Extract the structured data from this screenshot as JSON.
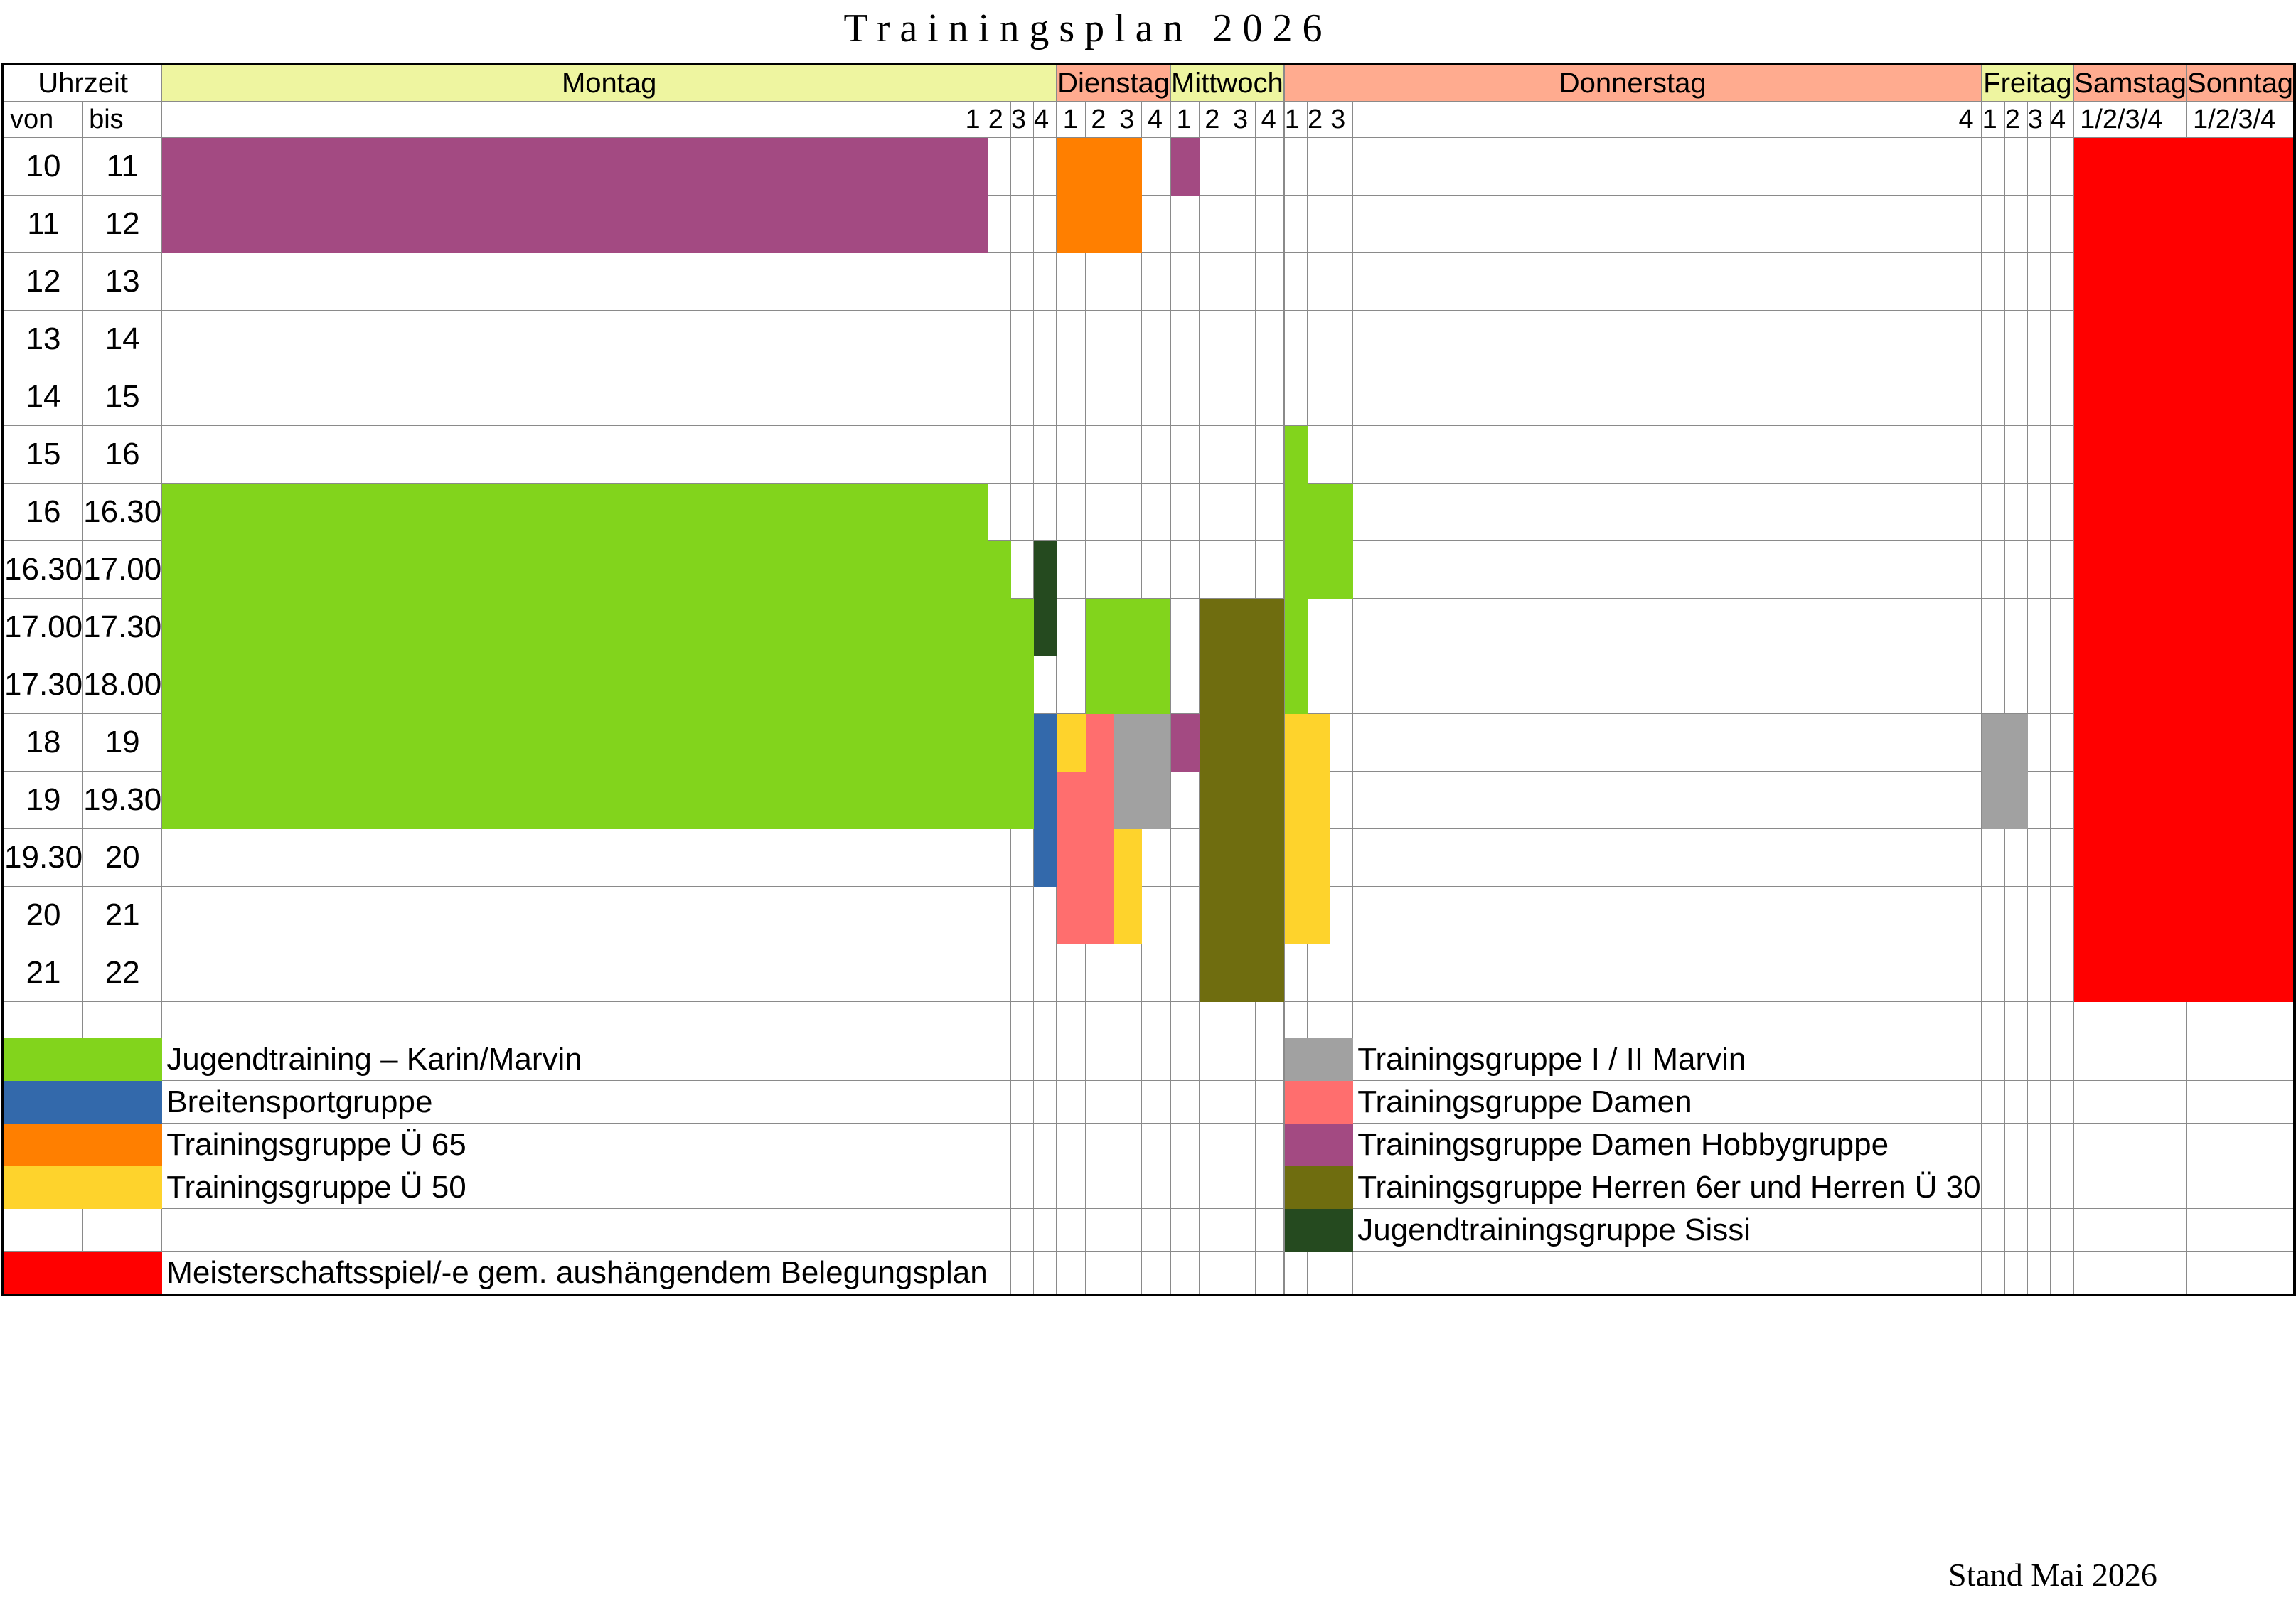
{
  "title": "Trainingsplan 2026",
  "footer": "Stand Mai 2026",
  "colors": {
    "jugend": "#82d41c",
    "breiten": "#3369ab",
    "ue65": "#ff7f00",
    "ue50": "#fed32c",
    "tg12": "#a1a1a1",
    "damen": "#ff6e6e",
    "hobby": "#a34a82",
    "herren": "#6f6d0f",
    "sissi": "#254a1f",
    "meister": "#ff0000",
    "yellow_header": "#eef5a0",
    "salmon_header": "#ffab8f"
  },
  "header": {
    "uhrzeit": "Uhrzeit",
    "von": "von",
    "bis": "bis",
    "days": [
      {
        "label": "Montag",
        "color": "yellow_header"
      },
      {
        "label": "Dienstag",
        "color": "salmon_header"
      },
      {
        "label": "Mittwoch",
        "color": "yellow_header"
      },
      {
        "label": "Donnerstag",
        "color": "salmon_header"
      },
      {
        "label": "Freitag",
        "color": "yellow_header"
      }
    ],
    "courts": [
      "1",
      "2",
      "3",
      "4"
    ],
    "weekend": [
      {
        "label": "Samstag",
        "courts": "1/2/3/4"
      },
      {
        "label": "Sonntag",
        "courts": "1/2/3/4"
      }
    ]
  },
  "rows": [
    {
      "von": "10",
      "bis": "11",
      "mon": [
        "hobby",
        "",
        "",
        ""
      ],
      "die": [
        "ue65",
        "ue65",
        "ue65",
        ""
      ],
      "mit": [
        "hobby",
        "",
        "",
        ""
      ],
      "don": [
        "",
        "",
        "",
        ""
      ],
      "fre": [
        "",
        "",
        "",
        ""
      ],
      "we": "meister"
    },
    {
      "von": "11",
      "bis": "12",
      "mon": [
        "hobby",
        "",
        "",
        ""
      ],
      "die": [
        "ue65",
        "ue65",
        "ue65",
        ""
      ],
      "mit": [
        "",
        "",
        "",
        ""
      ],
      "don": [
        "",
        "",
        "",
        ""
      ],
      "fre": [
        "",
        "",
        "",
        ""
      ],
      "we": "meister"
    },
    {
      "von": "12",
      "bis": "13",
      "mon": [
        "",
        "",
        "",
        ""
      ],
      "die": [
        "",
        "",
        "",
        ""
      ],
      "mit": [
        "",
        "",
        "",
        ""
      ],
      "don": [
        "",
        "",
        "",
        ""
      ],
      "fre": [
        "",
        "",
        "",
        ""
      ],
      "we": "meister"
    },
    {
      "von": "13",
      "bis": "14",
      "mon": [
        "",
        "",
        "",
        ""
      ],
      "die": [
        "",
        "",
        "",
        ""
      ],
      "mit": [
        "",
        "",
        "",
        ""
      ],
      "don": [
        "",
        "",
        "",
        ""
      ],
      "fre": [
        "",
        "",
        "",
        ""
      ],
      "we": "meister"
    },
    {
      "von": "14",
      "bis": "15",
      "mon": [
        "",
        "",
        "",
        ""
      ],
      "die": [
        "",
        "",
        "",
        ""
      ],
      "mit": [
        "",
        "",
        "",
        ""
      ],
      "don": [
        "",
        "",
        "",
        ""
      ],
      "fre": [
        "",
        "",
        "",
        ""
      ],
      "we": "meister"
    },
    {
      "von": "15",
      "bis": "16",
      "mon": [
        "",
        "",
        "",
        ""
      ],
      "die": [
        "",
        "",
        "",
        ""
      ],
      "mit": [
        "",
        "",
        "",
        ""
      ],
      "don": [
        "jugend",
        "",
        "",
        ""
      ],
      "fre": [
        "",
        "",
        "",
        ""
      ],
      "we": "meister"
    },
    {
      "von": "16",
      "bis": "16.30",
      "mon": [
        "jugend",
        "",
        "",
        ""
      ],
      "die": [
        "",
        "",
        "",
        ""
      ],
      "mit": [
        "",
        "",
        "",
        ""
      ],
      "don": [
        "jugend",
        "jugend",
        "jugend",
        ""
      ],
      "fre": [
        "",
        "",
        "",
        ""
      ],
      "we": "meister"
    },
    {
      "von": "16.30",
      "bis": "17.00",
      "mon": [
        "jugend",
        "jugend",
        "",
        "sissi"
      ],
      "die": [
        "",
        "",
        "",
        ""
      ],
      "mit": [
        "",
        "",
        "",
        ""
      ],
      "don": [
        "jugend",
        "jugend",
        "jugend",
        ""
      ],
      "fre": [
        "",
        "",
        "",
        ""
      ],
      "we": "meister"
    },
    {
      "von": "17.00",
      "bis": "17.30",
      "mon": [
        "jugend",
        "jugend",
        "jugend",
        "sissi"
      ],
      "die": [
        "",
        "jugend",
        "jugend",
        "jugend"
      ],
      "mit": [
        "",
        "herren",
        "herren",
        "herren"
      ],
      "don": [
        "jugend",
        "",
        "",
        ""
      ],
      "fre": [
        "",
        "",
        "",
        ""
      ],
      "we": "meister"
    },
    {
      "von": "17.30",
      "bis": "18.00",
      "mon": [
        "jugend",
        "jugend",
        "jugend",
        ""
      ],
      "die": [
        "",
        "jugend",
        "jugend",
        "jugend"
      ],
      "mit": [
        "",
        "herren",
        "herren",
        "herren"
      ],
      "don": [
        "jugend",
        "",
        "",
        ""
      ],
      "fre": [
        "",
        "",
        "",
        ""
      ],
      "we": "meister"
    },
    {
      "von": "18",
      "bis": "19",
      "mon": [
        "jugend",
        "jugend",
        "jugend",
        "breiten"
      ],
      "die": [
        "ue50",
        "damen",
        "tg12",
        "tg12"
      ],
      "mit": [
        "hobby",
        "herren",
        "herren",
        "herren"
      ],
      "don": [
        "ue50",
        "ue50",
        "",
        ""
      ],
      "fre": [
        "tg12",
        "tg12",
        "",
        ""
      ],
      "we": "meister"
    },
    {
      "von": "19",
      "bis": "19.30",
      "mon": [
        "jugend",
        "jugend",
        "jugend",
        "breiten"
      ],
      "die": [
        "damen",
        "damen",
        "tg12",
        "tg12"
      ],
      "mit": [
        "",
        "herren",
        "herren",
        "herren"
      ],
      "don": [
        "ue50",
        "ue50",
        "",
        ""
      ],
      "fre": [
        "tg12",
        "tg12",
        "",
        ""
      ],
      "we": "meister"
    },
    {
      "von": "19.30",
      "bis": "20",
      "mon": [
        "",
        "",
        "",
        "breiten"
      ],
      "die": [
        "damen",
        "damen",
        "ue50",
        ""
      ],
      "mit": [
        "",
        "herren",
        "herren",
        "herren"
      ],
      "don": [
        "ue50",
        "ue50",
        "",
        ""
      ],
      "fre": [
        "",
        "",
        "",
        ""
      ],
      "we": "meister"
    },
    {
      "von": "20",
      "bis": "21",
      "mon": [
        "",
        "",
        "",
        ""
      ],
      "die": [
        "damen",
        "damen",
        "ue50",
        ""
      ],
      "mit": [
        "",
        "herren",
        "herren",
        "herren"
      ],
      "don": [
        "ue50",
        "ue50",
        "",
        ""
      ],
      "fre": [
        "",
        "",
        "",
        ""
      ],
      "we": "meister"
    },
    {
      "von": "21",
      "bis": "22",
      "mon": [
        "",
        "",
        "",
        ""
      ],
      "die": [
        "",
        "",
        "",
        ""
      ],
      "mit": [
        "",
        "herren",
        "herren",
        "herren"
      ],
      "don": [
        "",
        "",
        "",
        ""
      ],
      "fre": [
        "",
        "",
        "",
        ""
      ],
      "we": "meister"
    }
  ],
  "legend": [
    {
      "left": {
        "color": "jugend",
        "label": "Jugendtraining – Karin/Marvin"
      },
      "right": {
        "color": "tg12",
        "label": "Trainingsgruppe I / II Marvin"
      }
    },
    {
      "left": {
        "color": "breiten",
        "label": "Breitensportgruppe"
      },
      "right": {
        "color": "damen",
        "label": "Trainingsgruppe Damen"
      }
    },
    {
      "left": {
        "color": "ue65",
        "label": "Trainingsgruppe Ü 65"
      },
      "right": {
        "color": "hobby",
        "label": "Trainingsgruppe Damen Hobbygruppe"
      }
    },
    {
      "left": {
        "color": "ue50",
        "label": "Trainingsgruppe Ü 50"
      },
      "right": {
        "color": "herren",
        "label": "Trainingsgruppe Herren 6er und Herren Ü 30"
      }
    },
    {
      "left": null,
      "right": {
        "color": "sissi",
        "label": "Jugendtrainingsgruppe Sissi"
      }
    },
    {
      "left": {
        "color": "meister",
        "label": "Meisterschaftsspiel/-e gem. aushängendem Belegungsplan"
      },
      "right": null
    }
  ]
}
